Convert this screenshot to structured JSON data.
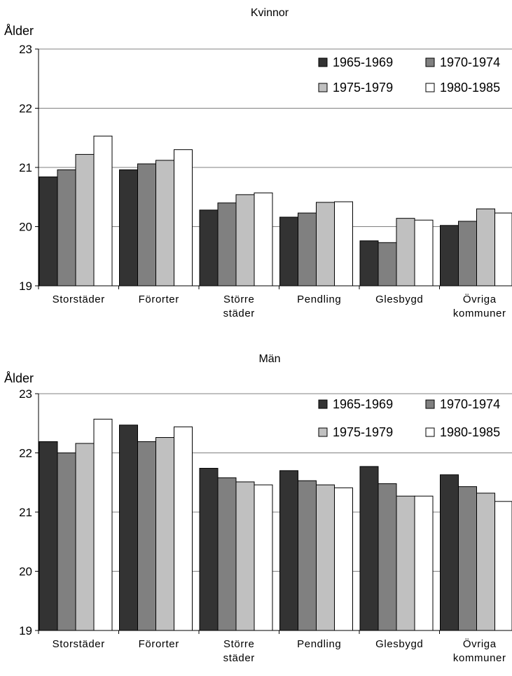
{
  "chart_data": [
    {
      "type": "bar",
      "title": "Kvinnor",
      "ylabel": "Ålder",
      "ylim": [
        19,
        23
      ],
      "yticks": [
        "19",
        "20",
        "21",
        "22",
        "23"
      ],
      "grid": true,
      "legend_position": "top-right",
      "categories": [
        "Storstäder",
        "Förorter",
        "Större städer",
        "Pendling",
        "Glesbygd",
        "Övriga kommuner"
      ],
      "category_lines": [
        [
          "Storstäder"
        ],
        [
          "Förorter"
        ],
        [
          "Större",
          "städer"
        ],
        [
          "Pendling"
        ],
        [
          "Glesbygd"
        ],
        [
          "Övriga",
          "kommuner"
        ]
      ],
      "series": [
        {
          "name": "1965-1969",
          "color": "#333333",
          "values": [
            20.84,
            20.96,
            20.28,
            20.16,
            19.76,
            20.02
          ]
        },
        {
          "name": "1970-1974",
          "color": "#808080",
          "values": [
            20.96,
            21.06,
            20.4,
            20.23,
            19.73,
            20.09
          ]
        },
        {
          "name": "1975-1979",
          "color": "#c0c0c0",
          "values": [
            21.22,
            21.12,
            20.54,
            20.41,
            20.14,
            20.3
          ]
        },
        {
          "name": "1980-1985",
          "color": "#ffffff",
          "values": [
            21.53,
            21.3,
            20.57,
            20.42,
            20.11,
            20.23
          ]
        }
      ]
    },
    {
      "type": "bar",
      "title": "Män",
      "ylabel": "Ålder",
      "ylim": [
        19,
        23
      ],
      "yticks": [
        "19",
        "20",
        "21",
        "22",
        "23"
      ],
      "grid": true,
      "legend_position": "top-right",
      "categories": [
        "Storstäder",
        "Förorter",
        "Större städer",
        "Pendling",
        "Glesbygd",
        "Övriga kommuner"
      ],
      "category_lines": [
        [
          "Storstäder"
        ],
        [
          "Förorter"
        ],
        [
          "Större",
          "städer"
        ],
        [
          "Pendling"
        ],
        [
          "Glesbygd"
        ],
        [
          "Övriga",
          "kommuner"
        ]
      ],
      "series": [
        {
          "name": "1965-1969",
          "color": "#333333",
          "values": [
            22.19,
            22.47,
            21.74,
            21.7,
            21.77,
            21.63
          ]
        },
        {
          "name": "1970-1974",
          "color": "#808080",
          "values": [
            22.0,
            22.19,
            21.58,
            21.53,
            21.48,
            21.43
          ]
        },
        {
          "name": "1975-1979",
          "color": "#c0c0c0",
          "values": [
            22.16,
            22.26,
            21.51,
            21.46,
            21.27,
            21.32
          ]
        },
        {
          "name": "1980-1985",
          "color": "#ffffff",
          "values": [
            22.57,
            22.44,
            21.46,
            21.41,
            21.27,
            21.18
          ]
        }
      ]
    }
  ]
}
